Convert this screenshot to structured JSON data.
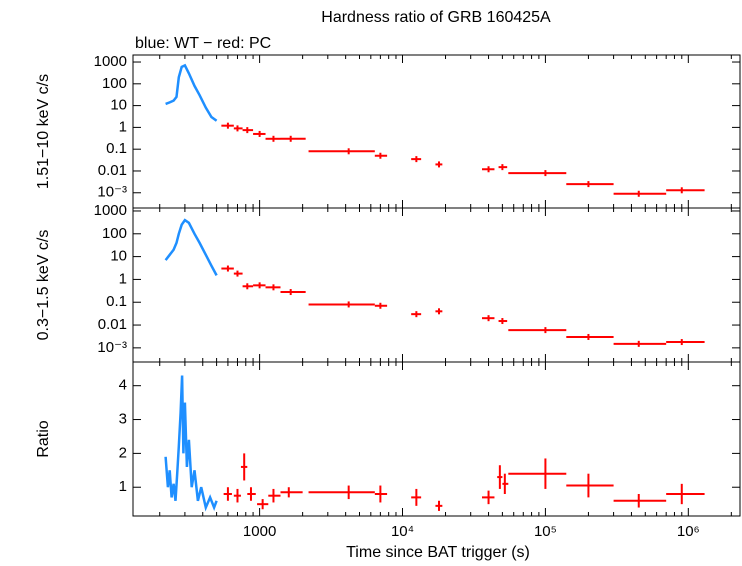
{
  "chart_data": [
    {
      "type": "scatter",
      "title": "Hardness ratio of GRB 160425A",
      "subtitle": "blue: WT − red: PC",
      "ylabel": "1.51−10 keV c/s",
      "log_y": true,
      "ylim": [
        0.0002,
        2100
      ],
      "yticks": [
        1000,
        100,
        10,
        1,
        0.1,
        0.01,
        {
          "value": 0.001,
          "label": "10⁻³"
        }
      ],
      "series": [
        {
          "name": "WT",
          "color": "#1f8fff",
          "style": "line",
          "x": [
            220,
            235,
            250,
            262,
            272,
            285,
            300,
            320,
            350,
            380,
            420,
            460,
            500
          ],
          "values": [
            12,
            14,
            17,
            25,
            200,
            600,
            700,
            300,
            80,
            30,
            8,
            3,
            2
          ]
        },
        {
          "name": "PC",
          "color": "#ff0000",
          "style": "cross",
          "x": [
            600,
            700,
            820,
            1000,
            1250,
            1650,
            4200,
            7000,
            12500,
            18000,
            40000,
            50000,
            100000,
            200000,
            450000,
            900000
          ],
          "x_lo": [
            540,
            660,
            760,
            900,
            1100,
            1400,
            2200,
            6400,
            11500,
            17000,
            36000,
            47000,
            55000,
            140000,
            300000,
            700000
          ],
          "x_hi": [
            660,
            760,
            900,
            1100,
            1400,
            2100,
            6400,
            7800,
            13500,
            19000,
            44000,
            54000,
            140000,
            300000,
            700000,
            1300000
          ],
          "values": [
            1.2,
            0.9,
            0.75,
            0.5,
            0.3,
            0.3,
            0.08,
            0.05,
            0.035,
            0.02,
            0.012,
            0.015,
            0.008,
            0.0025,
            0.0009,
            0.0013
          ]
        }
      ]
    },
    {
      "type": "scatter",
      "ylabel": "0.3−1.5 keV c/s",
      "log_y": true,
      "ylim": [
        0.00024,
        1350
      ],
      "yticks": [
        1000,
        100,
        10,
        1,
        0.1,
        0.01,
        {
          "value": 0.001,
          "label": "10⁻³"
        }
      ],
      "series": [
        {
          "name": "WT",
          "color": "#1f8fff",
          "style": "line",
          "x": [
            220,
            235,
            250,
            262,
            272,
            285,
            300,
            320,
            350,
            380,
            420,
            460,
            500
          ],
          "values": [
            7,
            12,
            20,
            40,
            100,
            250,
            400,
            300,
            100,
            40,
            12,
            4,
            1.5
          ]
        },
        {
          "name": "PC",
          "color": "#ff0000",
          "style": "cross",
          "x": [
            600,
            700,
            820,
            1000,
            1250,
            1650,
            4200,
            7000,
            12500,
            18000,
            40000,
            50000,
            100000,
            200000,
            450000,
            900000
          ],
          "x_lo": [
            540,
            660,
            760,
            900,
            1100,
            1400,
            2200,
            6400,
            11500,
            17000,
            36000,
            47000,
            55000,
            140000,
            300000,
            700000
          ],
          "x_hi": [
            660,
            760,
            900,
            1100,
            1400,
            2100,
            6400,
            7800,
            13500,
            19000,
            44000,
            54000,
            140000,
            300000,
            700000,
            1300000
          ],
          "values": [
            3,
            1.8,
            0.5,
            0.55,
            0.45,
            0.28,
            0.08,
            0.07,
            0.03,
            0.04,
            0.02,
            0.015,
            0.006,
            0.003,
            0.0015,
            0.0018
          ]
        }
      ]
    },
    {
      "type": "scatter",
      "ylabel": "Ratio",
      "xlabel": "Time since BAT trigger (s)",
      "log_y": false,
      "ylim": [
        0.15,
        4.7
      ],
      "yticks": [
        1,
        2,
        3,
        4
      ],
      "log_x": true,
      "xlim": [
        130,
        2300000
      ],
      "xticks": [
        1000,
        {
          "value": 10000,
          "label": "10⁴"
        },
        {
          "value": 100000,
          "label": "10⁵"
        },
        {
          "value": 1000000,
          "label": "10⁶"
        }
      ],
      "series": [
        {
          "name": "WT",
          "color": "#1f8fff",
          "style": "line",
          "x": [
            220,
            228,
            235,
            242,
            250,
            258,
            265,
            272,
            280,
            287,
            293,
            300,
            310,
            320,
            335,
            350,
            370,
            390,
            420,
            450,
            480,
            500
          ],
          "values": [
            1.9,
            1.0,
            1.5,
            0.7,
            1.1,
            0.6,
            1.4,
            2.2,
            3.2,
            4.3,
            2.0,
            3.5,
            1.6,
            2.4,
            1.0,
            1.5,
            0.6,
            1.0,
            0.4,
            0.7,
            0.4,
            0.6
          ]
        },
        {
          "name": "PC",
          "color": "#ff0000",
          "style": "cross",
          "x": [
            600,
            700,
            780,
            870,
            1050,
            1250,
            1600,
            4200,
            7000,
            12500,
            18000,
            40000,
            48000,
            52000,
            100000,
            200000,
            450000,
            900000
          ],
          "x_lo": [
            560,
            660,
            740,
            820,
            960,
            1150,
            1400,
            2200,
            6400,
            11500,
            17000,
            36000,
            46000,
            50000,
            55000,
            140000,
            300000,
            700000
          ],
          "x_hi": [
            640,
            740,
            820,
            940,
            1150,
            1400,
            2000,
            6400,
            7800,
            13500,
            19000,
            44000,
            50000,
            55000,
            140000,
            300000,
            700000,
            1300000
          ],
          "values": [
            0.8,
            0.75,
            1.6,
            0.8,
            0.5,
            0.75,
            0.85,
            0.85,
            0.8,
            0.7,
            0.45,
            0.7,
            1.3,
            1.1,
            1.4,
            1.05,
            0.6,
            0.8
          ],
          "yerr": [
            0.2,
            0.2,
            0.4,
            0.2,
            0.15,
            0.2,
            0.15,
            0.2,
            0.25,
            0.25,
            0.15,
            0.2,
            0.35,
            0.3,
            0.45,
            0.35,
            0.2,
            0.3
          ]
        }
      ]
    }
  ]
}
